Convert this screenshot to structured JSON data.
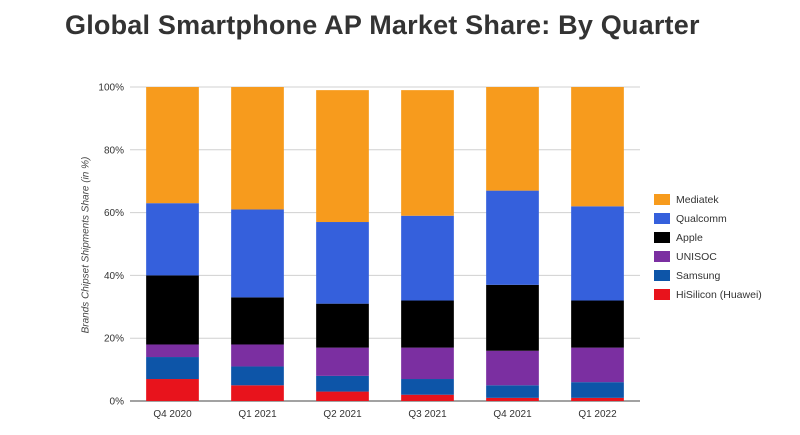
{
  "chart_data": {
    "type": "bar",
    "stacked": true,
    "title": "Global Smartphone AP Market Share: By Quarter",
    "xlabel": "",
    "ylabel": "Brands Chipset Shipments Share (in %)",
    "ylim": [
      0,
      100
    ],
    "yticks": [
      "0%",
      "20%",
      "40%",
      "60%",
      "80%",
      "100%"
    ],
    "grid": true,
    "legend_position": "right",
    "categories": [
      "Q4 2020",
      "Q1 2021",
      "Q2 2021",
      "Q3 2021",
      "Q4 2021",
      "Q1 2022"
    ],
    "series": [
      {
        "name": "HiSilicon (Huawei)",
        "color": "#e8131c",
        "values": [
          7,
          5,
          3,
          2,
          1,
          1
        ]
      },
      {
        "name": "Samsung",
        "color": "#0d55a8",
        "values": [
          7,
          6,
          5,
          5,
          4,
          5
        ]
      },
      {
        "name": "UNISOC",
        "color": "#7b2fa1",
        "values": [
          4,
          7,
          9,
          10,
          11,
          11
        ]
      },
      {
        "name": "Apple",
        "color": "#000000",
        "values": [
          22,
          15,
          14,
          15,
          21,
          15
        ]
      },
      {
        "name": "Qualcomm",
        "color": "#3560dc",
        "values": [
          23,
          28,
          26,
          27,
          30,
          30
        ]
      },
      {
        "name": "Mediatek",
        "color": "#f79b1d",
        "values": [
          37,
          39,
          42,
          40,
          33,
          38
        ]
      }
    ]
  }
}
